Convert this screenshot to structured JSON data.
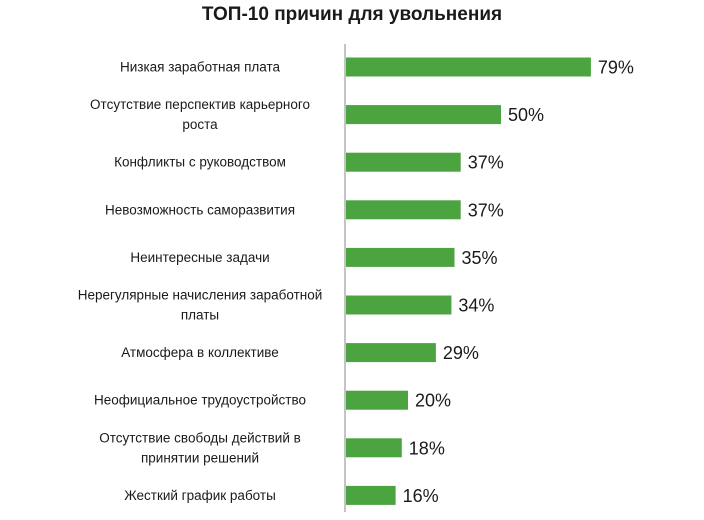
{
  "chart_data": {
    "type": "bar",
    "orientation": "horizontal",
    "title": "ТОП-10 причин для увольнения",
    "categories": [
      [
        "Низкая заработная плата"
      ],
      [
        "Отсутствие перспектив карьерного",
        "роста"
      ],
      [
        "Конфликты с руководством"
      ],
      [
        "Невозможность саморазвития"
      ],
      [
        "Неинтересные задачи"
      ],
      [
        "Нерегулярные начисления заработной",
        "платы"
      ],
      [
        "Атмосфера в коллективе"
      ],
      [
        "Неофициальное трудоустройство"
      ],
      [
        "Отсутствие свободы действий в",
        "принятии решений"
      ],
      [
        "Жесткий график работы"
      ]
    ],
    "values": [
      79,
      50,
      37,
      37,
      35,
      34,
      29,
      20,
      18,
      16
    ],
    "value_labels": [
      "79%",
      "50%",
      "37%",
      "37%",
      "35%",
      "34%",
      "29%",
      "20%",
      "18%",
      "16%"
    ],
    "xlim": [
      0,
      100
    ],
    "grid": false,
    "legend": "none",
    "colors": {
      "bar": "#4ba43f",
      "text": "#1a1a1a",
      "axis": "#8a8a8a"
    }
  }
}
